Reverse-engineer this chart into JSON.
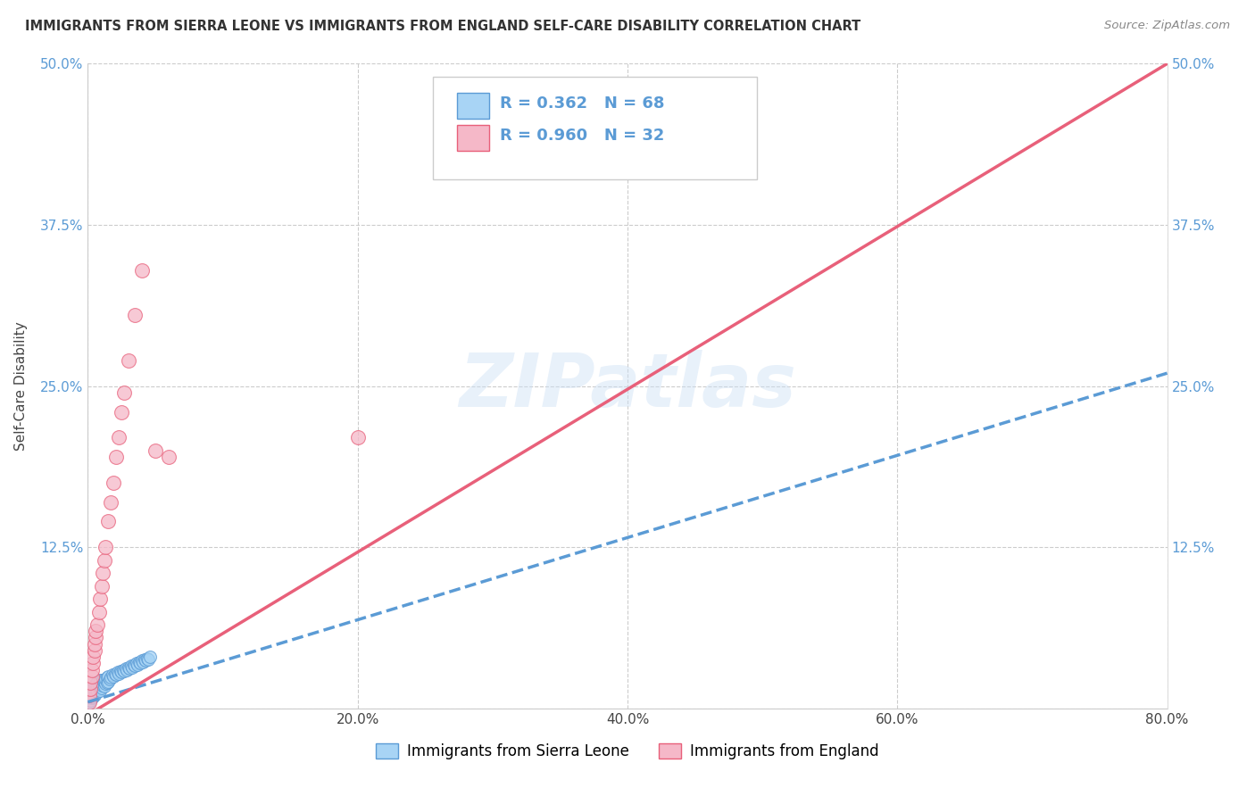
{
  "title": "IMMIGRANTS FROM SIERRA LEONE VS IMMIGRANTS FROM ENGLAND SELF-CARE DISABILITY CORRELATION CHART",
  "source": "Source: ZipAtlas.com",
  "ylabel": "Self-Care Disability",
  "legend_label1": "Immigrants from Sierra Leone",
  "legend_label2": "Immigrants from England",
  "R1": 0.362,
  "N1": 68,
  "R2": 0.96,
  "N2": 32,
  "color1": "#a8d4f5",
  "color2": "#f5b8c8",
  "line_color1": "#5b9bd5",
  "line_color2": "#e8607a",
  "xlim": [
    0.0,
    0.8
  ],
  "ylim": [
    0.0,
    0.5
  ],
  "xticks": [
    0.0,
    0.2,
    0.4,
    0.6,
    0.8
  ],
  "yticks": [
    0.0,
    0.125,
    0.25,
    0.375,
    0.5
  ],
  "xticklabels": [
    "0.0%",
    "20.0%",
    "40.0%",
    "60.0%",
    "80.0%"
  ],
  "yticklabels": [
    "",
    "12.5%",
    "25.0%",
    "37.5%",
    "50.0%"
  ],
  "watermark": "ZIPatlas",
  "background_color": "#ffffff",
  "sierra_leone_x": [
    0.001,
    0.001,
    0.002,
    0.002,
    0.002,
    0.003,
    0.003,
    0.003,
    0.004,
    0.004,
    0.004,
    0.005,
    0.005,
    0.005,
    0.006,
    0.006,
    0.006,
    0.007,
    0.007,
    0.007,
    0.008,
    0.008,
    0.009,
    0.009,
    0.009,
    0.01,
    0.01,
    0.011,
    0.011,
    0.012,
    0.012,
    0.013,
    0.013,
    0.014,
    0.014,
    0.015,
    0.015,
    0.016,
    0.017,
    0.018,
    0.019,
    0.02,
    0.021,
    0.022,
    0.023,
    0.024,
    0.025,
    0.026,
    0.027,
    0.028,
    0.029,
    0.03,
    0.031,
    0.032,
    0.033,
    0.034,
    0.035,
    0.036,
    0.037,
    0.038,
    0.039,
    0.04,
    0.041,
    0.042,
    0.043,
    0.044,
    0.045,
    0.046
  ],
  "sierra_leone_y": [
    0.005,
    0.008,
    0.006,
    0.01,
    0.012,
    0.008,
    0.011,
    0.015,
    0.009,
    0.013,
    0.016,
    0.01,
    0.014,
    0.018,
    0.012,
    0.015,
    0.019,
    0.013,
    0.017,
    0.021,
    0.015,
    0.019,
    0.014,
    0.018,
    0.022,
    0.016,
    0.02,
    0.018,
    0.022,
    0.017,
    0.021,
    0.019,
    0.023,
    0.02,
    0.024,
    0.021,
    0.025,
    0.023,
    0.024,
    0.026,
    0.025,
    0.027,
    0.026,
    0.028,
    0.027,
    0.029,
    0.028,
    0.03,
    0.029,
    0.031,
    0.03,
    0.032,
    0.031,
    0.033,
    0.032,
    0.034,
    0.033,
    0.035,
    0.034,
    0.036,
    0.035,
    0.037,
    0.036,
    0.038,
    0.037,
    0.039,
    0.038,
    0.04
  ],
  "england_x": [
    0.001,
    0.001,
    0.002,
    0.002,
    0.003,
    0.003,
    0.004,
    0.004,
    0.005,
    0.005,
    0.006,
    0.006,
    0.007,
    0.008,
    0.009,
    0.01,
    0.011,
    0.012,
    0.013,
    0.015,
    0.017,
    0.019,
    0.021,
    0.023,
    0.025,
    0.027,
    0.03,
    0.035,
    0.04,
    0.05,
    0.06,
    0.2
  ],
  "england_y": [
    0.005,
    0.01,
    0.015,
    0.02,
    0.025,
    0.03,
    0.035,
    0.04,
    0.045,
    0.05,
    0.055,
    0.06,
    0.065,
    0.075,
    0.085,
    0.095,
    0.105,
    0.115,
    0.125,
    0.145,
    0.16,
    0.175,
    0.195,
    0.21,
    0.23,
    0.245,
    0.27,
    0.305,
    0.34,
    0.2,
    0.195,
    0.21
  ],
  "sl_line_x": [
    0.0,
    0.8
  ],
  "sl_line_y": [
    0.005,
    0.26
  ],
  "en_line_x": [
    0.0,
    0.8
  ],
  "en_line_y": [
    -0.005,
    0.5
  ]
}
